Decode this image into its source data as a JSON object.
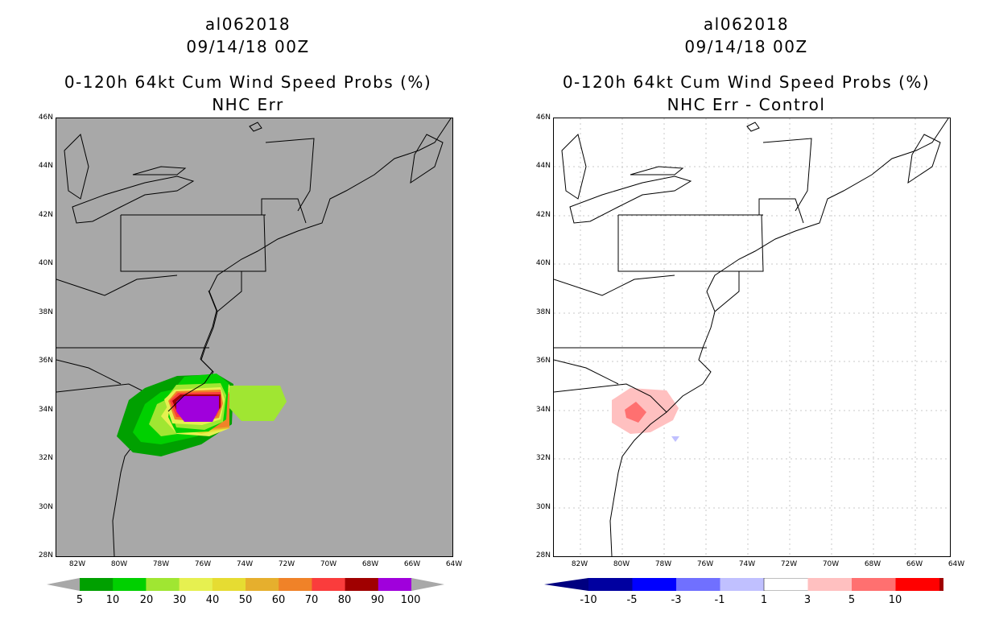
{
  "panels": [
    {
      "id": "left",
      "storm": "al062018",
      "datetime": "09/14/18 00Z",
      "title": "0-120h 64kt Cum Wind Speed Probs (%)",
      "subtitle": "NHC Err",
      "colors": {
        "ocean": "#a8a8a8",
        "land": "#a8a8a8"
      },
      "colorbar": {
        "labels": [
          "5",
          "10",
          "20",
          "30",
          "40",
          "50",
          "60",
          "70",
          "80",
          "90",
          "100"
        ],
        "colors": [
          "#00a000",
          "#00d000",
          "#a0e632",
          "#e6f050",
          "#e6dc32",
          "#e6af2d",
          "#f08228",
          "#fa3c3c",
          "#a00000",
          "#a000dc"
        ],
        "end_color": "#a8a8a8"
      }
    },
    {
      "id": "right",
      "storm": "al062018",
      "datetime": "09/14/18 00Z",
      "title": "0-120h 64kt Cum Wind Speed Probs (%)",
      "subtitle": "NHC Err - Control",
      "colors": {
        "ocean": "#ffffff",
        "land": "#ffffff"
      },
      "colorbar": {
        "labels": [
          "-10",
          "-5",
          "-3",
          "-1",
          "1",
          "3",
          "5",
          "10"
        ],
        "colors": [
          "#0000a0",
          "#0000ff",
          "#7070ff",
          "#c0c0ff",
          "#ffffff",
          "#ffc0c0",
          "#ff7070",
          "#ff0000",
          "#a00000"
        ],
        "end_low": "#000080",
        "end_high": "#800000"
      }
    }
  ],
  "lat_labels": [
    "46N",
    "44N",
    "42N",
    "40N",
    "38N",
    "36N",
    "34N",
    "32N",
    "30N",
    "28N"
  ],
  "lon_labels": [
    "82W",
    "80W",
    "78W",
    "76W",
    "74W",
    "72W",
    "70W",
    "68W",
    "66W",
    "64W"
  ]
}
